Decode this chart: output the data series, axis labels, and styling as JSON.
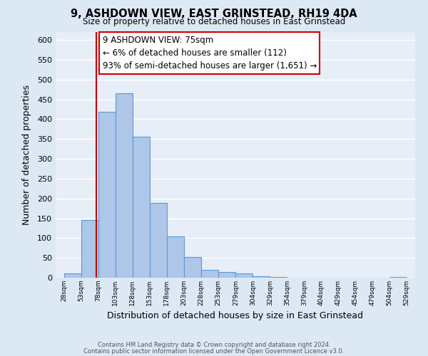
{
  "title": "9, ASHDOWN VIEW, EAST GRINSTEAD, RH19 4DA",
  "subtitle": "Size of property relative to detached houses in East Grinstead",
  "xlabel": "Distribution of detached houses by size in East Grinstead",
  "ylabel": "Number of detached properties",
  "footnote1": "Contains HM Land Registry data © Crown copyright and database right 2024.",
  "footnote2": "Contains public sector information licensed under the Open Government Licence v3.0.",
  "bar_edges": [
    28,
    53,
    78,
    103,
    128,
    153,
    178,
    203,
    228,
    253,
    279,
    304,
    329,
    354,
    379,
    404,
    429,
    454,
    479,
    504,
    529
  ],
  "bar_heights": [
    10,
    145,
    418,
    465,
    355,
    188,
    105,
    53,
    20,
    15,
    10,
    3,
    1,
    0,
    0,
    0,
    0,
    0,
    0,
    2
  ],
  "bar_color": "#aec6e8",
  "bar_edgecolor": "#5b9bd5",
  "property_line_x": 75,
  "property_line_color": "#cc0000",
  "ylim": [
    0,
    620
  ],
  "annotation_title": "9 ASHDOWN VIEW: 75sqm",
  "annotation_line1": "← 6% of detached houses are smaller (112)",
  "annotation_line2": "93% of semi-detached houses are larger (1,651) →",
  "fig_background_color": "#dde8f5",
  "plot_background_color": "#e8eef7",
  "grid_color": "#ffffff",
  "tick_labels": [
    "28sqm",
    "53sqm",
    "78sqm",
    "103sqm",
    "128sqm",
    "153sqm",
    "178sqm",
    "203sqm",
    "228sqm",
    "253sqm",
    "279sqm",
    "304sqm",
    "329sqm",
    "354sqm",
    "379sqm",
    "404sqm",
    "429sqm",
    "454sqm",
    "479sqm",
    "504sqm",
    "529sqm"
  ],
  "yticks": [
    0,
    50,
    100,
    150,
    200,
    250,
    300,
    350,
    400,
    450,
    500,
    550,
    600
  ]
}
